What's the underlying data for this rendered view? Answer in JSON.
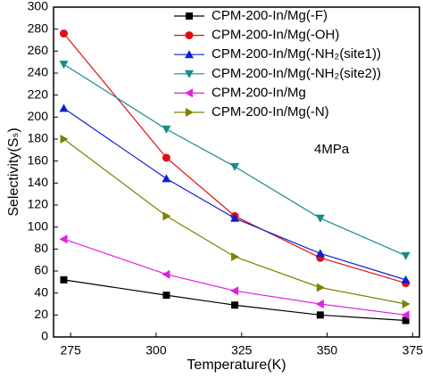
{
  "chart_data": {
    "type": "line",
    "x_label": "Temperature(K)",
    "y_label": "Selectivity(Sₛ)",
    "annotation": "4MPa",
    "x": [
      273,
      303,
      323,
      348,
      373
    ],
    "xlim": [
      270,
      377
    ],
    "xticks": [
      275,
      300,
      325,
      350,
      375
    ],
    "ylim": [
      0,
      300
    ],
    "yticks": [
      0,
      20,
      40,
      60,
      80,
      100,
      120,
      140,
      160,
      180,
      200,
      220,
      240,
      260,
      280,
      300
    ],
    "legend": "upper right",
    "series": [
      {
        "name": "CPM-200-In/Mg(-F)",
        "color": "#000000",
        "marker": "square",
        "values": [
          52,
          38,
          29,
          20,
          15
        ]
      },
      {
        "name": "CPM-200-In/Mg(-OH)",
        "color": "#e01010",
        "marker": "circle",
        "values": [
          276,
          163,
          110,
          72,
          49
        ]
      },
      {
        "name": "CPM-200-In/Mg(-NH₂(site1))",
        "color": "#1020d0",
        "marker": "triangle-up",
        "values": [
          208,
          144,
          108,
          76,
          52
        ]
      },
      {
        "name": "CPM-200-In/Mg(-NH₂(site2))",
        "color": "#1a8a8a",
        "marker": "triangle-down",
        "values": [
          248,
          189,
          155,
          108,
          74
        ]
      },
      {
        "name": "CPM-200-In/Mg",
        "color": "#e020e0",
        "marker": "triangle-left",
        "values": [
          89,
          57,
          42,
          30,
          20
        ]
      },
      {
        "name": "CPM-200-In/Mg(-N)",
        "color": "#808000",
        "marker": "triangle-right",
        "values": [
          180,
          110,
          73,
          45,
          30
        ]
      }
    ]
  }
}
